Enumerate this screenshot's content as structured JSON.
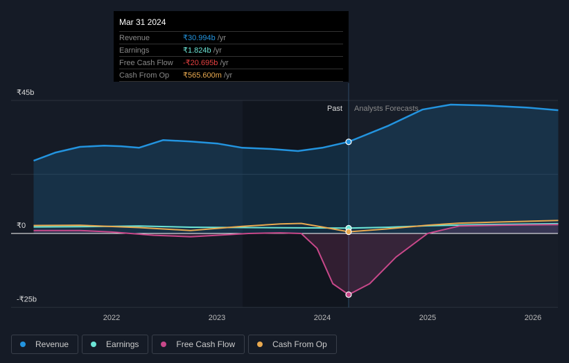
{
  "tooltip": {
    "date": "Mar 31 2024",
    "rows": [
      {
        "label": "Revenue",
        "value": "₹30.994b",
        "unit": " /yr",
        "color": "#2394df"
      },
      {
        "label": "Earnings",
        "value": "₹1.824b",
        "unit": " /yr",
        "color": "#6ce5d6"
      },
      {
        "label": "Free Cash Flow",
        "value": "-₹20.695b",
        "unit": " /yr",
        "color": "#e64141"
      },
      {
        "label": "Cash From Op",
        "value": "₹565.600m",
        "unit": " /yr",
        "color": "#e9a94f"
      }
    ]
  },
  "chart_data": {
    "type": "line",
    "ylim": [
      -25,
      45
    ],
    "xlim": [
      2021.26,
      2026.24
    ],
    "y_ticks": [
      {
        "v": 45,
        "label": "₹45b"
      },
      {
        "v": 0,
        "label": "₹0"
      },
      {
        "v": -25,
        "label": "-₹25b"
      }
    ],
    "x_ticks": [
      {
        "v": 2022,
        "label": "2022"
      },
      {
        "v": 2023,
        "label": "2023"
      },
      {
        "v": 2024,
        "label": "2024"
      },
      {
        "v": 2025,
        "label": "2025"
      },
      {
        "v": 2026,
        "label": "2026"
      }
    ],
    "divider": 2024.25,
    "past_label": "Past",
    "forecast_label": "Analysts Forecasts",
    "series": [
      {
        "name": "Revenue",
        "color": "#2394df",
        "x": [
          2021.26,
          2021.47,
          2021.7,
          2021.93,
          2022.09,
          2022.26,
          2022.49,
          2022.75,
          2023.01,
          2023.24,
          2023.51,
          2023.77,
          2024.0,
          2024.25,
          2024.63,
          2024.95,
          2025.22,
          2025.55,
          2025.94,
          2026.24
        ],
        "y": [
          24.6,
          27.4,
          29.3,
          29.7,
          29.5,
          29.0,
          31.6,
          31.1,
          30.4,
          29.0,
          28.6,
          27.9,
          29.0,
          31.0,
          36.5,
          41.9,
          43.6,
          43.3,
          42.6,
          41.7
        ]
      },
      {
        "name": "Earnings",
        "color": "#6ce5d6",
        "x": [
          2021.26,
          2021.7,
          2022.26,
          2022.75,
          2023.24,
          2023.77,
          2024.25,
          2024.63,
          2025.0,
          2025.5,
          2026.24
        ],
        "y": [
          2.2,
          2.3,
          2.5,
          2.1,
          2.0,
          1.9,
          1.8,
          2.1,
          2.6,
          3.0,
          3.3
        ]
      },
      {
        "name": "Free Cash Flow",
        "color": "#c8488a",
        "x": [
          2021.26,
          2021.7,
          2022.0,
          2022.4,
          2022.75,
          2023.0,
          2023.3,
          2023.6,
          2023.8,
          2023.95,
          2024.1,
          2024.25,
          2024.45,
          2024.7,
          2025.0,
          2025.3,
          2025.7,
          2026.24
        ],
        "y": [
          1.0,
          1.0,
          0.5,
          -0.6,
          -1.1,
          -0.6,
          0,
          0.2,
          0,
          -5,
          -17,
          -20.7,
          -17,
          -8,
          0,
          2.5,
          2.8,
          3.0
        ]
      },
      {
        "name": "Cash From Op",
        "color": "#e9a94f",
        "x": [
          2021.26,
          2021.7,
          2022.26,
          2022.75,
          2023.24,
          2023.6,
          2023.8,
          2024.0,
          2024.25,
          2024.6,
          2025.0,
          2025.3,
          2025.7,
          2026.24
        ],
        "y": [
          2.7,
          2.8,
          2.0,
          1.0,
          2.4,
          3.2,
          3.4,
          2.2,
          0.57,
          1.5,
          2.8,
          3.5,
          3.9,
          4.4
        ]
      }
    ]
  },
  "legend": [
    "Revenue",
    "Earnings",
    "Free Cash Flow",
    "Cash From Op"
  ]
}
